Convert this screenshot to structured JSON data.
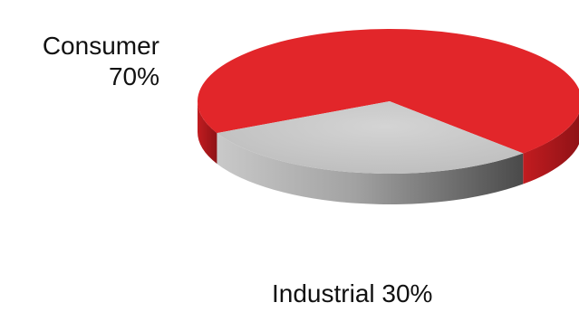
{
  "chart_data": {
    "type": "pie",
    "style": "3d",
    "title": "",
    "slices": [
      {
        "label": "Consumer",
        "value": 70,
        "value_label": "70%",
        "color": "#e2262a"
      },
      {
        "label": "Industrial",
        "value": 30,
        "value_label": "30%",
        "color": "#c8c8c8"
      }
    ],
    "legend": "none"
  }
}
